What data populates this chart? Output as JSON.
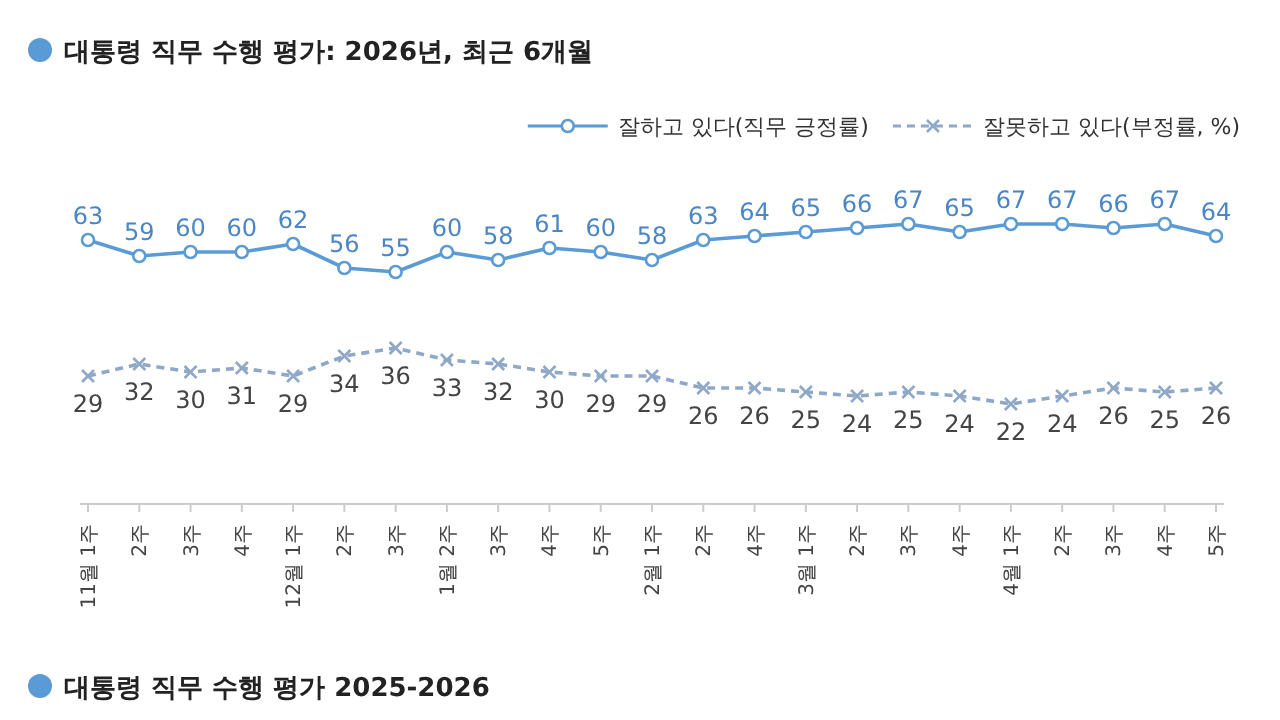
{
  "chart_data": {
    "type": "line",
    "title": "대통령 직무 수행 평가: 2026년, 최근 6개월",
    "categories": [
      "11월 1주",
      "2주",
      "3주",
      "4주",
      "12월 1주",
      "2주",
      "3주",
      "1월 2주",
      "3주",
      "4주",
      "5주",
      "2월 1주",
      "2주",
      "4주",
      "3월 1주",
      "2주",
      "3주",
      "4주",
      "4월 1주",
      "2주",
      "3주",
      "4주",
      "5주"
    ],
    "series": [
      {
        "name": "잘하고 있다(직무 긍정률)",
        "color": "#5b9bd5",
        "marker": "circle",
        "line_style": "solid",
        "values": [
          63,
          59,
          60,
          60,
          62,
          56,
          55,
          60,
          58,
          61,
          60,
          58,
          63,
          64,
          65,
          66,
          67,
          65,
          67,
          67,
          66,
          67,
          64
        ]
      },
      {
        "name": "잘못하고 있다(부정률, %)",
        "color": "#8fa8c8",
        "marker": "cross",
        "line_style": "dashed",
        "values": [
          29,
          32,
          30,
          31,
          29,
          34,
          36,
          33,
          32,
          30,
          29,
          29,
          26,
          26,
          25,
          24,
          25,
          24,
          22,
          24,
          26,
          25,
          26
        ]
      }
    ],
    "data_labels": true,
    "legend": "top right",
    "annotations": [
      "대통령 직무 수행 평가 2025-2026"
    ]
  }
}
